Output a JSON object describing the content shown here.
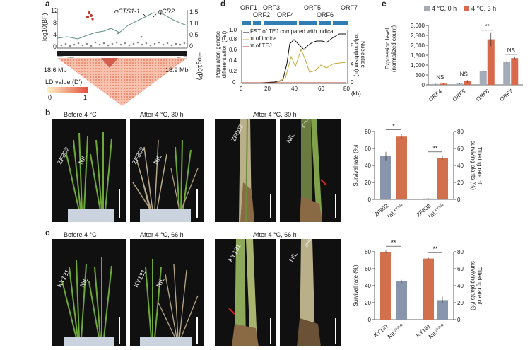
{
  "panels": {
    "a": {
      "label": "a",
      "y_left_label": "log10(BF)",
      "y_right_label": "−log10(P)",
      "left_ticks": [
        "0",
        "4",
        "8",
        "12"
      ],
      "right_ticks": [
        "0",
        "0.5",
        "1.0",
        "1.5"
      ],
      "gene1": "qCTS1-1",
      "gene2": "qCR2",
      "pos_left": "18.6 Mb",
      "pos_right": "18.9 Mb",
      "ld_title": "LD value (D′)",
      "ld_min": "0",
      "ld_max": "1"
    },
    "b": {
      "label": "b",
      "photo_captions": [
        "Before 4 °C",
        "After 4 °C, 30 h",
        "After 4 °C, 30 h"
      ],
      "plant_labels": [
        "ZF802",
        "NIL",
        "KY131"
      ],
      "chart_sig": [
        "*",
        "**"
      ]
    },
    "c": {
      "label": "c",
      "photo_captions": [
        "Before 4 °C",
        "After 4 °C, 66 h",
        "After 4 °C, 66 h"
      ],
      "plant_labels": [
        "KY131",
        "NIL",
        "ZF802"
      ],
      "chart_sig": [
        "**",
        "**"
      ]
    },
    "d": {
      "label": "d",
      "orfs": [
        "ORF1",
        "ORF2",
        "ORF3",
        "ORF4",
        "ORF5",
        "ORF6",
        "ORF7"
      ],
      "legend": [
        "FST of TEJ compared with indica",
        "π of indica",
        "π of TEJ"
      ],
      "y_left_label": "Population genetic differentiation (Fst)",
      "y_right_label": "Nucleotide polymorphism (π)",
      "x_unit": "(kb)",
      "x_ticks": [
        "0",
        "20",
        "40",
        "60",
        "80"
      ],
      "left_ticks": [
        "0",
        "0.2",
        "0.4",
        "0.6",
        "0.8",
        "1.0"
      ],
      "right_ticks": [
        "0",
        "4",
        "8"
      ]
    },
    "e": {
      "label": "e",
      "legend": [
        "4 °C, 0 h",
        "4 °C, 3 h"
      ],
      "y_label": "Expression level (normalized count)",
      "y_ticks": [
        "0",
        "500",
        "1,000",
        "1,500",
        "2,000",
        "2,500",
        "3,000"
      ],
      "categories": [
        "ORF4",
        "ORF5",
        "ORF6",
        "ORF7"
      ],
      "sig": [
        "NS",
        "NS",
        "**",
        "NS"
      ]
    }
  },
  "chart_data": [
    {
      "panel": "e",
      "type": "bar",
      "categories": [
        "ORF4",
        "ORF5",
        "ORF6",
        "ORF7"
      ],
      "series": [
        {
          "name": "4 °C, 0 h",
          "values": [
            40,
            60,
            700,
            1150
          ],
          "errors": [
            15,
            25,
            60,
            120
          ]
        },
        {
          "name": "4 °C, 3 h",
          "values": [
            60,
            180,
            2300,
            1350
          ],
          "errors": [
            20,
            60,
            350,
            80
          ]
        }
      ],
      "ylabel": "Expression level (normalized count)",
      "ylim": [
        0,
        3000
      ],
      "colors": [
        "#a5acb8",
        "#d9694a"
      ]
    },
    {
      "panel": "b",
      "type": "bar",
      "categories": [
        "ZF802",
        "NIL-KY131"
      ],
      "series": [
        {
          "name": "Survival rate (%)",
          "values": [
            51,
            74
          ],
          "errors": [
            5,
            3
          ],
          "colors": [
            "#8895ad",
            "#d2704e"
          ]
        },
        {
          "name": "Tillering rate of surviving plants (%)",
          "values": [
            1,
            49
          ],
          "errors": [
            0.5,
            2
          ],
          "colors": [
            "#8895ad",
            "#d2704e"
          ]
        }
      ],
      "ylabel_left": "Survival rate (%)",
      "ylabel_right": "Tillering rate of surviving plants (%)",
      "ylim": [
        0,
        80
      ],
      "yticks": [
        0,
        20,
        40,
        60,
        80
      ],
      "xlabels": [
        "ZF802",
        "NIL",
        "ZF802",
        "NIL"
      ],
      "xsub": [
        "",
        "KY131",
        "",
        "KY131"
      ]
    },
    {
      "panel": "c",
      "type": "bar",
      "categories": [
        "KY131",
        "NIL-ZF802"
      ],
      "series": [
        {
          "name": "Survival rate (%)",
          "values": [
            80,
            45
          ],
          "errors": [
            1.5,
            2
          ],
          "colors": [
            "#d2704e",
            "#8895ad"
          ]
        },
        {
          "name": "Tillering rate of surviving plants (%)",
          "values": [
            72,
            23
          ],
          "errors": [
            2,
            4
          ],
          "colors": [
            "#d2704e",
            "#8895ad"
          ]
        }
      ],
      "ylabel_left": "Survival rate (%)",
      "ylabel_right": "Tillering rate of surviving plants (%)",
      "ylim": [
        0,
        80
      ],
      "yticks": [
        0,
        20,
        40,
        60,
        80
      ],
      "xlabels": [
        "KY131",
        "NIL",
        "KY131",
        "NIL"
      ],
      "xsub": [
        "",
        "ZF802",
        "",
        "ZF802"
      ]
    }
  ]
}
